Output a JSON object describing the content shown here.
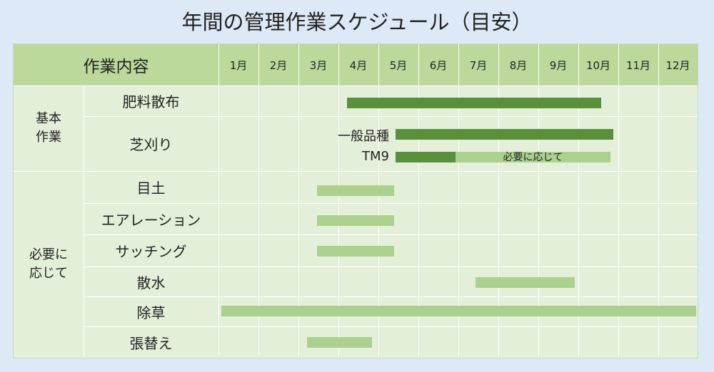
{
  "title": "年間の管理作業スケジュール（目安）",
  "header": {
    "label": "作業内容",
    "months": [
      "1月",
      "2月",
      "3月",
      "4月",
      "5月",
      "6月",
      "7月",
      "8月",
      "9月",
      "10月",
      "11月",
      "12月"
    ]
  },
  "categories": {
    "basic": "基本\n作業",
    "as_needed": "必要に\n応じて"
  },
  "tasks": {
    "fertilizer": "肥料散布",
    "mowing": "芝刈り",
    "topdressing": "目土",
    "aeration": "エアレーション",
    "thatching": "サッチング",
    "watering": "散水",
    "weeding": "除草",
    "replanting": "張替え"
  },
  "mowing_subs": {
    "general": "一般品種",
    "tm9": "TM9",
    "tm9_note": "必要に応じて"
  },
  "colors": {
    "header": "#bcd89b",
    "body": "#e4efd9",
    "bar_dark": "#5a8f3c",
    "bar_light": "#acd18f",
    "background": "#dde9f6"
  },
  "schedule": [
    {
      "task": "肥料散布",
      "from_month": 4.2,
      "to_month": 10.1,
      "style": "dark"
    },
    {
      "task": "芝刈り 一般品種",
      "from_month": 5.5,
      "to_month": 10.4,
      "style": "dark"
    },
    {
      "task": "芝刈り TM9",
      "from_month": 5.5,
      "to_month": 6.9,
      "style": "dark"
    },
    {
      "task": "芝刈り TM9 必要に応じて",
      "from_month": 6.9,
      "to_month": 10.8,
      "style": "light"
    },
    {
      "task": "目土",
      "from_month": 3.5,
      "to_month": 5.4,
      "style": "light"
    },
    {
      "task": "エアレーション",
      "from_month": 3.5,
      "to_month": 5.4,
      "style": "light"
    },
    {
      "task": "サッチング",
      "from_month": 3.5,
      "to_month": 5.4,
      "style": "light"
    },
    {
      "task": "散水",
      "from_month": 7.5,
      "to_month": 9.9,
      "style": "light"
    },
    {
      "task": "除草",
      "from_month": 1.0,
      "to_month": 12.9,
      "style": "light"
    },
    {
      "task": "張替え",
      "from_month": 3.2,
      "to_month": 4.8,
      "style": "light"
    }
  ]
}
